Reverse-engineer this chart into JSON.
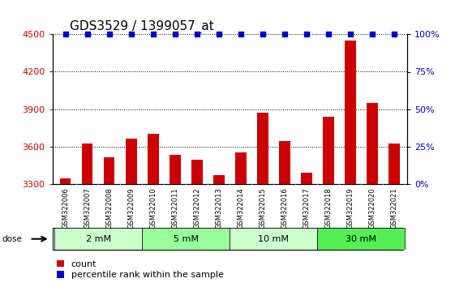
{
  "title": "GDS3529 / 1399057_at",
  "samples": [
    "GSM322006",
    "GSM322007",
    "GSM322008",
    "GSM322009",
    "GSM322010",
    "GSM322011",
    "GSM322012",
    "GSM322013",
    "GSM322014",
    "GSM322015",
    "GSM322016",
    "GSM322017",
    "GSM322018",
    "GSM322019",
    "GSM322020",
    "GSM322021"
  ],
  "values": [
    3340,
    3620,
    3510,
    3660,
    3700,
    3530,
    3490,
    3370,
    3550,
    3870,
    3640,
    3390,
    3840,
    4450,
    3950,
    3620
  ],
  "bar_color": "#cc0000",
  "percentile_color": "#0000cc",
  "ylim_left": [
    3300,
    4500
  ],
  "ylim_right": [
    0,
    100
  ],
  "yticks_left": [
    3300,
    3600,
    3900,
    4200,
    4500
  ],
  "yticks_right": [
    0,
    25,
    50,
    75,
    100
  ],
  "dose_groups": [
    {
      "label": "2 mM",
      "start": 0,
      "end": 4,
      "color": "#ccffcc"
    },
    {
      "label": "5 mM",
      "start": 4,
      "end": 8,
      "color": "#99ff99"
    },
    {
      "label": "10 mM",
      "start": 8,
      "end": 12,
      "color": "#ccffcc"
    },
    {
      "label": "30 mM",
      "start": 12,
      "end": 16,
      "color": "#55ee55"
    }
  ],
  "left_tick_color": "#cc0000",
  "right_tick_color": "#0000cc",
  "background_color": "#ffffff",
  "xtick_bg_color": "#d0d0d0",
  "title_fontsize": 11,
  "tick_fontsize": 8,
  "xtick_fontsize": 6,
  "legend_fontsize": 8,
  "bar_width": 0.5
}
